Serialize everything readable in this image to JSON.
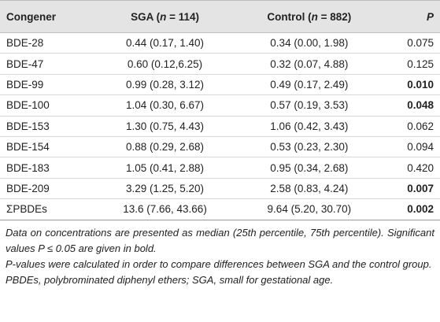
{
  "table": {
    "header": [
      [
        "Congener"
      ],
      [
        "SGA (",
        "n",
        " = 114)"
      ],
      [
        "Control (",
        "n",
        " = 882)"
      ],
      [
        "P"
      ]
    ],
    "rows": [
      [
        "BDE-28",
        "0.44 (0.17, 1.40)",
        "0.34 (0.00, 1.98)",
        "0.075"
      ],
      [
        "BDE-47",
        "0.60 (0.12,6.25)",
        "0.32 (0.07, 4.88)",
        "0.125"
      ],
      [
        "BDE-99",
        "0.99 (0.28, 3.12)",
        "0.49 (0.17, 2.49)",
        "0.010"
      ],
      [
        "BDE-100",
        "1.04 (0.30, 6.67)",
        "0.57 (0.19, 3.53)",
        "0.048"
      ],
      [
        "BDE-153",
        "1.30 (0.75, 4.43)",
        "1.06 (0.42, 3.43)",
        "0.062"
      ],
      [
        "BDE-154",
        "0.88 (0.29, 2.68)",
        "0.53 (0.23, 2.30)",
        "0.094"
      ],
      [
        "BDE-183",
        "1.05 (0.41, 2.88)",
        "0.95 (0.34, 2.68)",
        "0.420"
      ],
      [
        "BDE-209",
        "3.29 (1.25, 5.20)",
        "2.58 (0.83, 4.24)",
        "0.007"
      ],
      [
        "ΣPBDEs",
        "13.6 (7.66, 43.66)",
        "9.64 (5.20, 30.70)",
        "0.002"
      ]
    ]
  },
  "footnotes": [
    "Data on concentrations are presented as median (25th percentile, 75th percentile). Significant values P ≤ 0.05 are given in bold.",
    "P-values were calculated in order to compare differences between SGA and the control group.",
    "PBDEs, polybrominated diphenyl ethers; SGA, small for gestational age."
  ]
}
